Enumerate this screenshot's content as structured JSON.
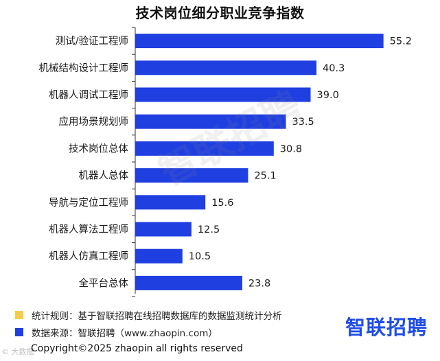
{
  "chart_data": {
    "type": "bar",
    "orientation": "horizontal",
    "title": "技术岗位细分职业竞争指数",
    "categories": [
      "测试/验证工程师",
      "机械结构设计工程师",
      "机器人调试工程师",
      "应用场景规划师",
      "技术岗位总体",
      "机器人总体",
      "导航与定位工程师",
      "机器人算法工程师",
      "机器人仿真工程师",
      "全平台总体"
    ],
    "values": [
      55.2,
      40.3,
      39.0,
      33.5,
      30.8,
      25.1,
      15.6,
      12.5,
      10.5,
      23.8
    ],
    "value_labels": [
      "55.2",
      "40.3",
      "39.0",
      "33.5",
      "30.8",
      "25.1",
      "15.6",
      "12.5",
      "10.5",
      "23.8"
    ],
    "xlim": [
      0,
      58
    ],
    "bar_color": "#1f3fe0",
    "grid": false,
    "legend": "none"
  },
  "notes": {
    "rule": "统计规则：基于智联招聘在线招聘数据库的数据监测统计分析",
    "rule_color": "#f5cc4a",
    "source": "数据来源：智联招聘（www.zhaopin.com）",
    "source_color": "#1f3fe0"
  },
  "watermark": "智联招聘",
  "brand_logo": "智联招聘",
  "corner_mark": "© 大数据",
  "copyright": "Copyright©2025 zhaopin all rights reserved"
}
